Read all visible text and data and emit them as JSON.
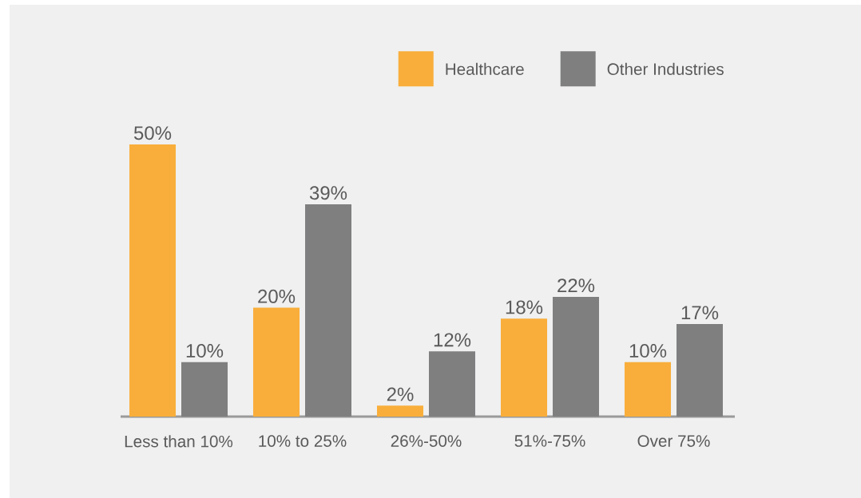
{
  "chart_data": {
    "type": "bar",
    "categories": [
      "Less than 10%",
      "10% to 25%",
      "26%-50%",
      "51%-75%",
      "Over 75%"
    ],
    "series": [
      {
        "name": "Healthcare",
        "color": "#f9ae3b",
        "values": [
          50,
          20,
          2,
          18,
          10
        ],
        "value_labels": [
          "50%",
          "20%",
          "2%",
          "18%",
          "10%"
        ]
      },
      {
        "name": "Other Industries",
        "color": "#7f7f80",
        "values": [
          10,
          39,
          12,
          22,
          17
        ],
        "value_labels": [
          "10%",
          "39%",
          "12%",
          "22%",
          "17%"
        ]
      }
    ],
    "legend": "top right"
  }
}
